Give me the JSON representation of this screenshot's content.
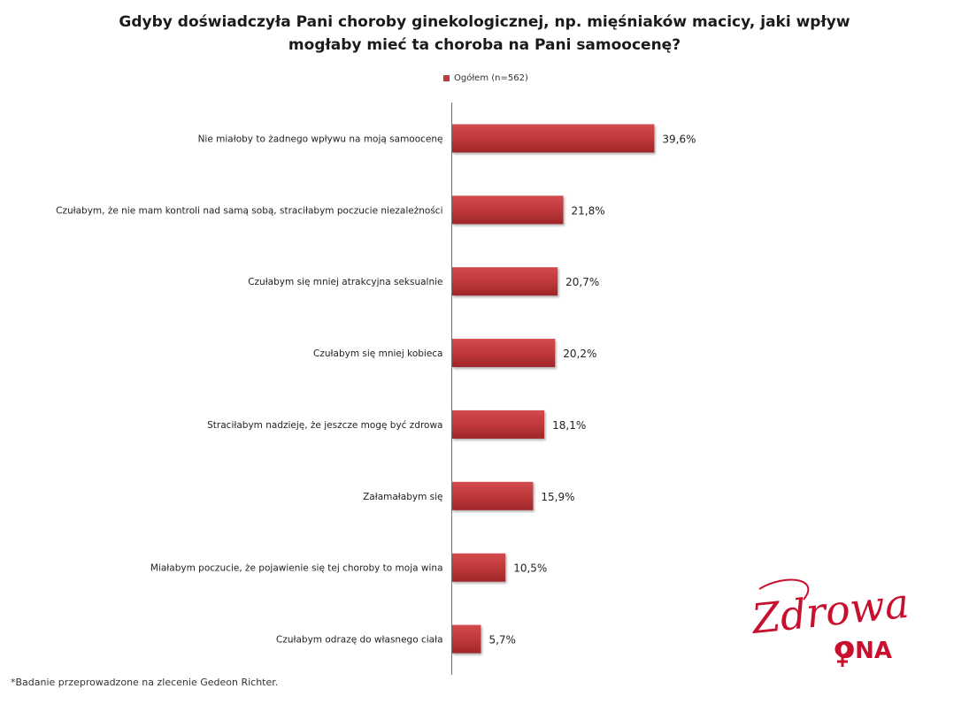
{
  "chart_data": {
    "type": "bar",
    "orientation": "horizontal",
    "title": "Gdyby doświadczyła Pani choroby ginekologicznej, np. mięśniaków macicy, jaki wpływ\nmogłaby mieć ta choroba na Pani samoocenę?",
    "legend_position": "top-center",
    "grid": false,
    "value_suffix": "%",
    "xlim": [
      0,
      100
    ],
    "categories": [
      "Nie miałoby to żadnego wpływu na moją samoocenę",
      "Czułabym, że nie mam kontroli nad samą sobą, straciłabym poczucie niezależności",
      "Czułabym się mniej atrakcyjna seksualnie",
      "Czułabym się mniej kobieca",
      "Straciłabym nadzieję, że jeszcze mogę być zdrowa",
      "Załamałabym się",
      "Miałabym poczucie, że pojawienie się tej choroby to moja wina",
      "Czułabym odrazę do własnego ciała"
    ],
    "series": [
      {
        "name": "Ogółem (n=562)",
        "color": "#c0393b",
        "values": [
          39.6,
          21.8,
          20.7,
          20.2,
          18.1,
          15.9,
          10.5,
          5.7
        ],
        "labels": [
          "39,6%",
          "21,8%",
          "20,7%",
          "20,2%",
          "18,1%",
          "15,9%",
          "10,5%",
          "5,7%"
        ]
      }
    ]
  },
  "footnote": "*Badanie przeprowadzone na zlecenie Gedeon Richter.",
  "logo": {
    "script_text": "Zdrowa",
    "bold_text": "ONA",
    "color": "#c8102e"
  }
}
